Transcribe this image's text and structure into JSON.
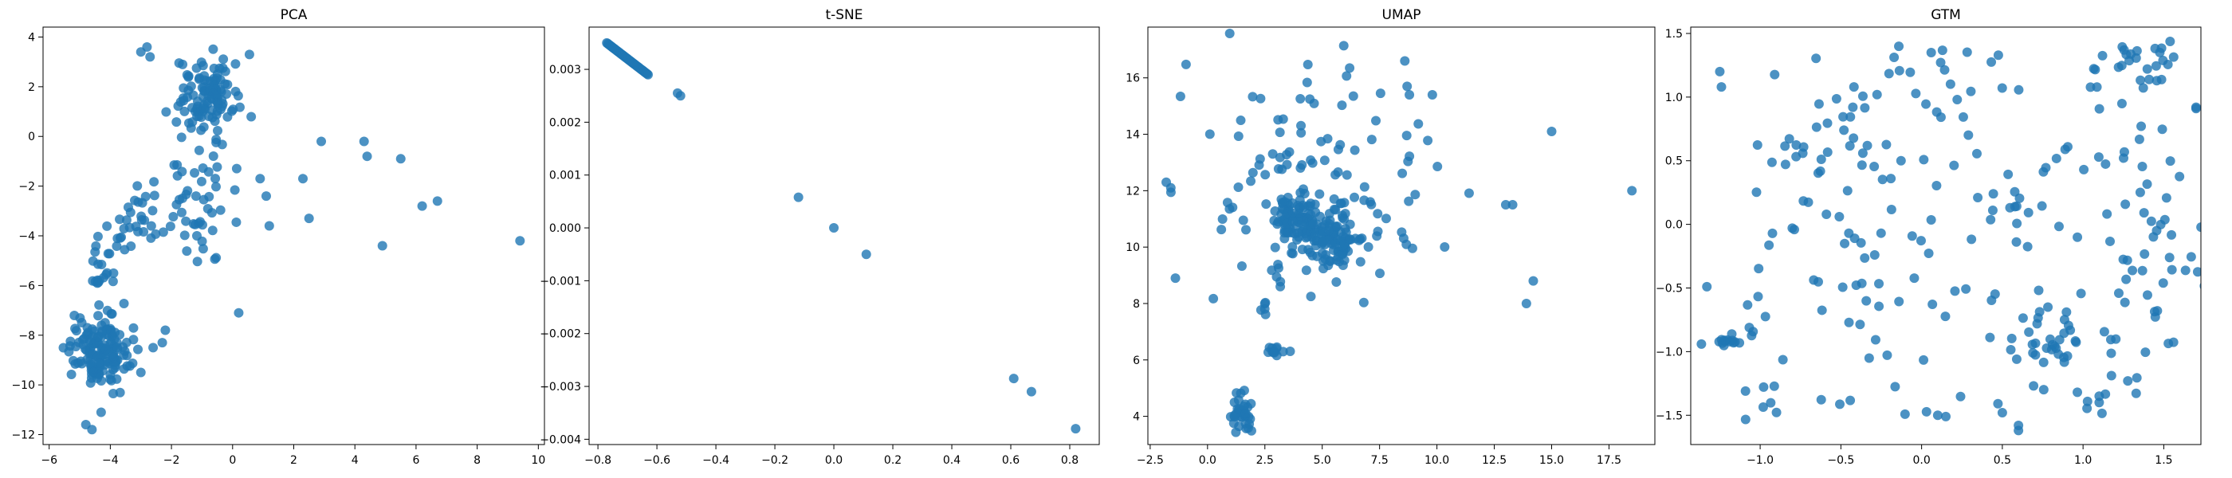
{
  "colors": {
    "marker": "#1f77b4",
    "marker_opacity": 0.8
  },
  "chart_data": [
    {
      "type": "scatter",
      "title": "PCA",
      "xlabel": "",
      "ylabel": "",
      "xlim": [
        -6.2,
        10.2
      ],
      "ylim": [
        -12.4,
        4.4
      ],
      "xticks": [
        -6,
        -4,
        -2,
        0,
        2,
        4,
        6,
        8,
        10
      ],
      "yticks": [
        -12,
        -10,
        -8,
        -6,
        -4,
        -2,
        0,
        2,
        4
      ],
      "grid": false,
      "clusters": [
        {
          "cx": -4.4,
          "cy": -8.6,
          "sx": 0.5,
          "sy": 0.7,
          "n": 150
        },
        {
          "cx": -0.8,
          "cy": 1.6,
          "sx": 0.5,
          "sy": 0.7,
          "n": 110
        },
        {
          "cx": -1.0,
          "cy": -2.5,
          "sx": 0.8,
          "sy": 1.4,
          "n": 55
        },
        {
          "cx": -3.3,
          "cy": -3.3,
          "sx": 0.5,
          "sy": 0.6,
          "n": 25
        },
        {
          "cx": -4.3,
          "cy": -5.5,
          "sx": 0.25,
          "sy": 0.7,
          "n": 20
        }
      ],
      "points": [
        [
          -3.0,
          3.4
        ],
        [
          -2.8,
          3.6
        ],
        [
          -2.7,
          3.2
        ],
        [
          -4.8,
          -11.6
        ],
        [
          -4.6,
          -11.8
        ],
        [
          -4.3,
          -11.1
        ],
        [
          -3.0,
          -9.5
        ],
        [
          -2.6,
          -8.5
        ],
        [
          -2.3,
          -8.3
        ],
        [
          -2.2,
          -7.8
        ],
        [
          0.2,
          -7.1
        ],
        [
          0.9,
          -1.7
        ],
        [
          1.1,
          -2.4
        ],
        [
          1.2,
          -3.6
        ],
        [
          2.3,
          -1.7
        ],
        [
          2.5,
          -3.3
        ],
        [
          2.9,
          -0.2
        ],
        [
          4.3,
          -0.2
        ],
        [
          4.4,
          -0.8
        ],
        [
          4.9,
          -4.4
        ],
        [
          5.5,
          -0.9
        ],
        [
          6.2,
          -2.8
        ],
        [
          6.7,
          -2.6
        ],
        [
          9.4,
          -4.2
        ]
      ]
    },
    {
      "type": "scatter",
      "title": "t-SNE",
      "xlabel": "",
      "ylabel": "",
      "xlim": [
        -0.83,
        0.9
      ],
      "ylim": [
        -0.0041,
        0.0038
      ],
      "xticks": [
        -0.8,
        -0.6,
        -0.4,
        -0.2,
        0.0,
        0.2,
        0.4,
        0.6,
        0.8
      ],
      "yticks": [
        -0.004,
        -0.003,
        -0.002,
        -0.001,
        0.0,
        0.001,
        0.002,
        0.003
      ],
      "ytick_labels": [
        "−0.004",
        "−0.003",
        "−0.002",
        "−0.001",
        "0.000",
        "0.001",
        "0.002",
        "0.003"
      ],
      "xtick_labels": [
        "−0.8",
        "−0.6",
        "−0.4",
        "−0.2",
        "0.0",
        "0.2",
        "0.4",
        "0.6",
        "0.8"
      ],
      "grid": false,
      "segments": [
        {
          "x0": -0.77,
          "y0": 0.0035,
          "x1": -0.63,
          "y1": 0.0029,
          "n": 45
        }
      ],
      "points": [
        [
          -0.53,
          0.00255
        ],
        [
          -0.52,
          0.0025
        ],
        [
          -0.12,
          0.00058
        ],
        [
          0.0,
          0.0
        ],
        [
          0.11,
          -0.0005
        ],
        [
          0.61,
          -0.00285
        ],
        [
          0.67,
          -0.0031
        ],
        [
          0.82,
          -0.0038
        ]
      ]
    },
    {
      "type": "scatter",
      "title": "UMAP",
      "xlabel": "",
      "ylabel": "",
      "xlim": [
        -2.6,
        19.5
      ],
      "ylim": [
        3.0,
        17.8
      ],
      "xticks": [
        -2.5,
        0.0,
        2.5,
        5.0,
        7.5,
        10.0,
        12.5,
        15.0,
        17.5
      ],
      "xtick_labels": [
        "−2.5",
        "0.0",
        "2.5",
        "5.0",
        "7.5",
        "10.0",
        "12.5",
        "15.0",
        "17.5"
      ],
      "yticks": [
        4,
        6,
        8,
        10,
        12,
        14,
        16
      ],
      "grid": false,
      "clusters": [
        {
          "cx": 4.0,
          "cy": 11.0,
          "sx": 0.6,
          "sy": 0.5,
          "n": 90
        },
        {
          "cx": 5.6,
          "cy": 10.2,
          "sx": 0.6,
          "sy": 0.4,
          "n": 70
        },
        {
          "cx": 4.5,
          "cy": 12.0,
          "sx": 2.2,
          "sy": 2.0,
          "n": 140
        },
        {
          "cx": 1.5,
          "cy": 4.1,
          "sx": 0.25,
          "sy": 0.35,
          "n": 35
        },
        {
          "cx": 3.0,
          "cy": 6.3,
          "sx": 0.25,
          "sy": 0.1,
          "n": 12
        }
      ],
      "points": [
        [
          -1.8,
          12.3
        ],
        [
          -1.6,
          12.1
        ],
        [
          -1.4,
          8.9
        ],
        [
          8.6,
          16.6
        ],
        [
          8.7,
          15.7
        ],
        [
          8.8,
          15.4
        ],
        [
          9.8,
          15.4
        ],
        [
          13.0,
          11.5
        ],
        [
          13.3,
          11.5
        ],
        [
          13.9,
          8.0
        ],
        [
          14.2,
          8.8
        ],
        [
          15.0,
          14.1
        ],
        [
          18.5,
          12.0
        ]
      ]
    },
    {
      "type": "scatter",
      "title": "GTM",
      "xlabel": "",
      "ylabel": "",
      "xlim": [
        -1.43,
        1.73
      ],
      "ylim": [
        -1.73,
        1.55
      ],
      "xticks": [
        -1.0,
        -0.5,
        0.0,
        0.5,
        1.0,
        1.5
      ],
      "xtick_labels": [
        "−1.0",
        "−0.5",
        "0.0",
        "0.5",
        "1.0",
        "1.5"
      ],
      "yticks": [
        -1.5,
        -1.0,
        -0.5,
        0.0,
        0.5,
        1.0,
        1.5
      ],
      "ytick_labels": [
        "−1.5",
        "−1.0",
        "−0.5",
        "0.0",
        "0.5",
        "1.0",
        "1.5"
      ],
      "grid": false,
      "uniform": {
        "x": [
          -1.1,
          1.6
        ],
        "y": [
          -1.55,
          1.4
        ],
        "n": 230
      },
      "clusters": [
        {
          "cx": -1.2,
          "cy": -0.92,
          "sx": 0.06,
          "sy": 0.02,
          "n": 14
        },
        {
          "cx": 0.8,
          "cy": -0.95,
          "sx": 0.12,
          "sy": 0.15,
          "n": 22
        },
        {
          "cx": 1.4,
          "cy": 1.3,
          "sx": 0.12,
          "sy": 0.1,
          "n": 15
        },
        {
          "cx": 1.5,
          "cy": -0.3,
          "sx": 0.12,
          "sy": 0.15,
          "n": 15
        }
      ],
      "points": [
        [
          -1.33,
          -0.49
        ],
        [
          -1.25,
          1.2
        ],
        [
          -1.24,
          1.08
        ],
        [
          0.1,
          -1.5
        ],
        [
          0.15,
          -1.51
        ],
        [
          0.5,
          -1.48
        ],
        [
          0.6,
          -1.58
        ],
        [
          0.6,
          -1.62
        ],
        [
          1.7,
          0.91
        ],
        [
          1.7,
          0.92
        ],
        [
          1.1,
          -1.4
        ],
        [
          1.1,
          -1.35
        ]
      ]
    }
  ]
}
